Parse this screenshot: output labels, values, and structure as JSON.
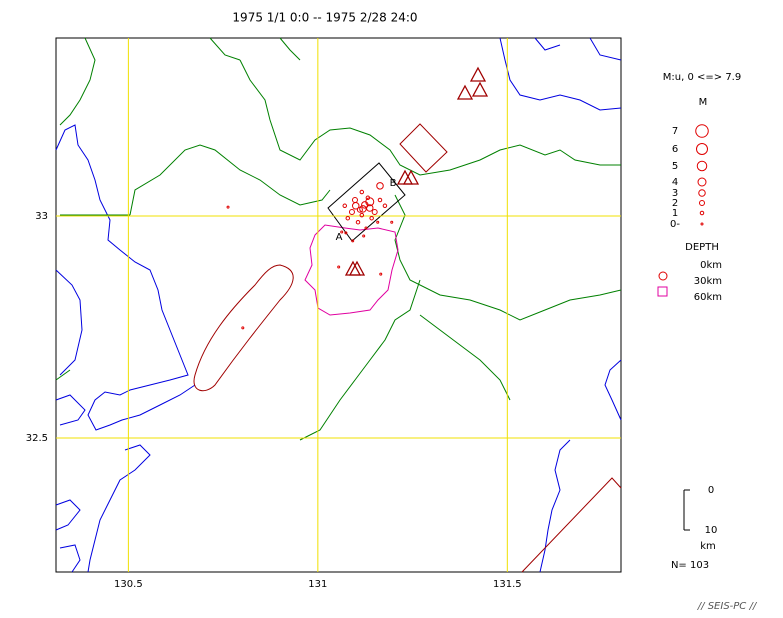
{
  "title": "1975 1/1 0:0 -- 1975 2/28 24:0",
  "map": {
    "xlim": [
      130.309,
      131.8
    ],
    "ylim": [
      32.198,
      33.401
    ],
    "xticks": [
      130.5,
      131,
      131.5
    ],
    "yticks": [
      33,
      32.5
    ],
    "grid": true,
    "event_color": "#e00000",
    "section_labels": [
      "A",
      "B"
    ],
    "events": [
      [
        131.124,
        33.025,
        3
      ],
      [
        131.111,
        33.014,
        2
      ],
      [
        131.137,
        33.018,
        3
      ],
      [
        131.098,
        33.036,
        2
      ],
      [
        131.15,
        33.009,
        2
      ],
      [
        131.116,
        33.002,
        1
      ],
      [
        131.132,
        33.041,
        1
      ],
      [
        131.09,
        33.009,
        2
      ],
      [
        131.164,
        33.036,
        1
      ],
      [
        131.106,
        32.986,
        1
      ],
      [
        131.142,
        32.995,
        1
      ],
      [
        131.127,
        32.973,
        0
      ],
      [
        131.079,
        32.995,
        1
      ],
      [
        131.177,
        33.023,
        1
      ],
      [
        131.164,
        33.068,
        3
      ],
      [
        131.116,
        33.054,
        1
      ],
      [
        131.071,
        33.023,
        1
      ],
      [
        131.158,
        32.986,
        0
      ],
      [
        131.121,
        32.955,
        0
      ],
      [
        131.063,
        32.964,
        0
      ],
      [
        131.092,
        32.944,
        0
      ],
      [
        131.055,
        32.885,
        0
      ],
      [
        131.166,
        32.869,
        0
      ],
      [
        130.763,
        33.02,
        0
      ],
      [
        130.802,
        32.748,
        0
      ],
      [
        131.074,
        32.962,
        0
      ],
      [
        131.195,
        32.986,
        0
      ],
      [
        131.137,
        33.032,
        4
      ],
      [
        131.1,
        33.023,
        3
      ],
      [
        131.119,
        33.016,
        3
      ]
    ]
  },
  "legend": {
    "title": "M:u, 0 <=> 7.9",
    "m_heading": "M",
    "magnitudes": [
      7,
      6,
      5,
      4,
      3,
      2,
      1,
      {
        "value": 0,
        "label": "0-"
      }
    ],
    "depth_heading": "DEPTH",
    "depths": [
      "0km",
      "30km",
      "60km"
    ]
  },
  "scale": {
    "ticks": [
      0,
      10
    ],
    "unit": "km"
  },
  "count": "N= 103",
  "footer": "// SEIS-PC //"
}
